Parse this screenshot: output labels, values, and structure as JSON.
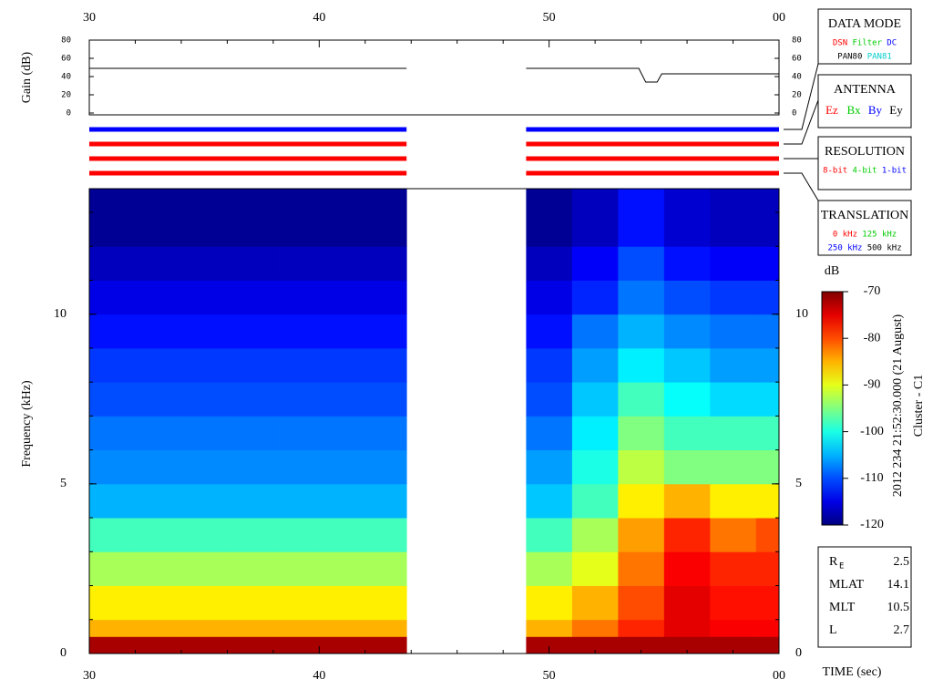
{
  "chart_data": [
    {
      "type": "line",
      "ylabel": "Gain (dB)",
      "x": [
        30,
        43.8,
        43.9,
        49,
        53.9,
        54.2,
        54.7,
        54.9,
        60
      ],
      "values": [
        49,
        49,
        null,
        49,
        49,
        34,
        34,
        43,
        43
      ],
      "color": "#000000",
      "xlim": [
        30,
        60
      ],
      "xticks": [
        30,
        40,
        50,
        {
          "value": 60,
          "label": "00"
        }
      ],
      "ylim": [
        0,
        80
      ],
      "yticks": [
        0,
        20,
        40,
        60,
        80
      ]
    },
    {
      "type": "heatmap",
      "ylabel": "Frequency (kHz)",
      "xlabel": "TIME (sec)",
      "xlim": [
        30,
        60
      ],
      "xticks": [
        30,
        40,
        50,
        {
          "value": 60,
          "label": "00"
        }
      ],
      "ylim": [
        0,
        13.7
      ],
      "yticks": [
        0,
        5,
        10
      ],
      "x_bins": [
        30,
        32,
        34,
        36,
        38,
        40,
        42,
        43.8,
        49,
        51,
        53,
        55,
        57,
        59,
        60
      ],
      "y_bins": [
        0,
        0.5,
        1,
        2,
        3,
        4,
        5,
        6,
        7,
        8,
        9,
        10,
        11,
        12,
        13.7
      ],
      "z": [
        [
          -72,
          -72,
          -72,
          -72,
          -72,
          -72,
          -72,
          null,
          -72,
          -72,
          -72,
          -72,
          -72,
          -72
        ],
        [
          -85,
          -85,
          -85,
          -85,
          -85,
          -85,
          -85,
          null,
          -85,
          -82,
          -78,
          -75,
          -76,
          -76
        ],
        [
          -88,
          -88,
          -88,
          -88,
          -88,
          -88,
          -88,
          null,
          -88,
          -85,
          -80,
          -75,
          -77,
          -77
        ],
        [
          -93,
          -93,
          -93,
          -93,
          -93,
          -93,
          -93,
          null,
          -93,
          -90,
          -82,
          -76,
          -78,
          -78
        ],
        [
          -98,
          -98,
          -98,
          -98,
          -98,
          -98,
          -98,
          null,
          -98,
          -93,
          -84,
          -78,
          -82,
          -80
        ],
        [
          -105,
          -105,
          -105,
          -105,
          -105,
          -105,
          -105,
          null,
          -104,
          -98,
          -88,
          -85,
          -88,
          -88
        ],
        [
          -107,
          -107,
          -107,
          -107,
          -107,
          -107,
          -107,
          null,
          -106,
          -100,
          -92,
          -95,
          -95,
          -95
        ],
        [
          -108,
          -108,
          -108,
          -108,
          -108,
          -108,
          -108,
          null,
          -108,
          -102,
          -95,
          -98,
          -98,
          -98
        ],
        [
          -110,
          -110,
          -110,
          -110,
          -110,
          -110,
          -110,
          null,
          -110,
          -104,
          -98,
          -101,
          -103,
          -103
        ],
        [
          -111,
          -111,
          -111,
          -111,
          -111,
          -111,
          -111,
          null,
          -111,
          -106,
          -102,
          -104,
          -106,
          -106
        ],
        [
          -113,
          -113,
          -113,
          -113,
          -113,
          -113,
          -113,
          null,
          -113,
          -108,
          -105,
          -107,
          -108,
          -108
        ],
        [
          -115,
          -115,
          -115,
          -115,
          -115,
          -115,
          -115,
          null,
          -115,
          -112,
          -108,
          -110,
          -111,
          -111
        ],
        [
          -117,
          -117,
          -117,
          -117,
          -117,
          -117,
          -117,
          null,
          -117,
          -114,
          -110,
          -113,
          -114,
          -114
        ],
        [
          -119,
          -119,
          -119,
          -119,
          -119,
          -119,
          -119,
          null,
          -119,
          -117,
          -113,
          -116,
          -117,
          -117
        ]
      ],
      "colormap": "jet",
      "colorbar": {
        "label": "dB",
        "lim": [
          -120,
          -70
        ],
        "ticks": [
          -120,
          -110,
          -100,
          -90,
          -80,
          -70
        ]
      },
      "side_title": "2012 234 21:52:30.000 (21 August)",
      "side_subtitle": "Cluster - C1"
    },
    {
      "type": "status",
      "xlim": [
        30,
        60
      ],
      "rows": [
        {
          "color": "#0000ff",
          "spans": [
            [
              30,
              43.8
            ],
            [
              49,
              60
            ]
          ]
        },
        {
          "color": "#ff0000",
          "spans": [
            [
              30,
              43.8
            ],
            [
              49,
              60
            ]
          ]
        },
        {
          "color": "#ff0000",
          "spans": [
            [
              30,
              43.8
            ],
            [
              49,
              60
            ]
          ]
        },
        {
          "color": "#ff0000",
          "spans": [
            [
              30,
              43.8
            ],
            [
              49,
              60
            ]
          ]
        }
      ]
    }
  ],
  "panels": [
    {
      "title": "DATA MODE",
      "rows": [
        [
          {
            "text": "DSN",
            "color": "#ff0000"
          },
          {
            "text": "Filter",
            "color": "#00cc00"
          },
          {
            "text": "DC",
            "color": "#0000ff"
          }
        ],
        [
          {
            "text": "PAN80",
            "color": "#000000"
          },
          {
            "text": "PAN81",
            "color": "#00cccc"
          }
        ]
      ]
    },
    {
      "title": "ANTENNA",
      "rows": [
        [
          {
            "text": "Ez",
            "color": "#ff0000"
          },
          {
            "text": "Bx",
            "color": "#00cc00"
          },
          {
            "text": "By",
            "color": "#0000ff"
          },
          {
            "text": "Ey",
            "color": "#000000"
          }
        ]
      ]
    },
    {
      "title": "RESOLUTION",
      "rows": [
        [
          {
            "text": "8-bit",
            "color": "#ff0000"
          },
          {
            "text": "4-bit",
            "color": "#00cc00"
          },
          {
            "text": "1-bit",
            "color": "#0000ff"
          }
        ]
      ]
    },
    {
      "title": "TRANSLATION",
      "rows": [
        [
          {
            "text": "0 kHz",
            "color": "#ff0000"
          },
          {
            "text": "125 kHz",
            "color": "#00cc00"
          }
        ],
        [
          {
            "text": "250 kHz",
            "color": "#0000ff"
          },
          {
            "text": "500 kHz",
            "color": "#000000"
          }
        ]
      ]
    }
  ],
  "info": [
    {
      "label": "R",
      "sub": "E",
      "value": 2.5
    },
    {
      "label": "MLAT",
      "value": 14.1
    },
    {
      "label": "MLT",
      "value": 10.5
    },
    {
      "label": "L",
      "value": 2.7
    }
  ]
}
